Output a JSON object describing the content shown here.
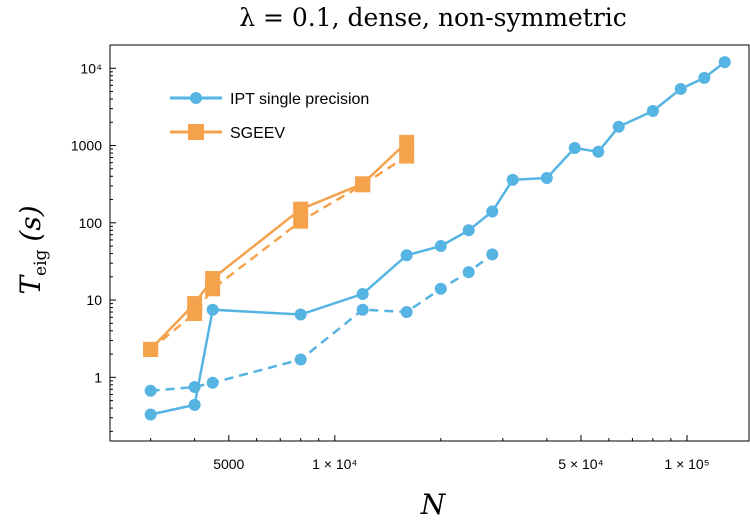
{
  "chart_data": {
    "type": "line",
    "title": "λ = 0.1, dense, non-symmetric",
    "xlabel": "N",
    "ylabel_main": "T",
    "ylabel_sub": "eig",
    "ylabel_unit": "(s)",
    "x_scale": "log",
    "y_scale": "log",
    "xlim": [
      2300,
      150000
    ],
    "ylim": [
      0.15,
      20000
    ],
    "x_ticks": [
      {
        "value": 5000,
        "label": "5000"
      },
      {
        "value": 10000,
        "label": "1 × 10⁴"
      },
      {
        "value": 50000,
        "label": "5 × 10⁴"
      },
      {
        "value": 100000,
        "label": "1 × 10⁵"
      }
    ],
    "y_ticks": [
      {
        "value": 1,
        "label": "1"
      },
      {
        "value": 10,
        "label": "10"
      },
      {
        "value": 100,
        "label": "100"
      },
      {
        "value": 1000,
        "label": "1000"
      },
      {
        "value": 10000,
        "label": "10⁴"
      }
    ],
    "legend_position": "top-left",
    "series": [
      {
        "name": "IPT single precision",
        "color": "#56B4E3",
        "marker": "circle",
        "dash": "solid",
        "x": [
          3000,
          4000,
          4500,
          8000,
          12000,
          16000,
          20000,
          24000,
          28000,
          32000,
          40000,
          48000,
          56000,
          64000,
          80000,
          96000,
          112000,
          128000
        ],
        "y": [
          0.33,
          0.44,
          7.5,
          6.5,
          12,
          38,
          50,
          80,
          140,
          360,
          380,
          930,
          830,
          1750,
          2800,
          5400,
          7500,
          12000
        ]
      },
      {
        "name": "",
        "color": "#56B4E3",
        "marker": "circle",
        "dash": "dashed",
        "x": [
          3000,
          4000,
          4500,
          8000,
          12000,
          16000,
          20000,
          24000,
          28000
        ],
        "y": [
          0.67,
          0.75,
          0.85,
          1.7,
          7.5,
          7.0,
          14,
          23,
          39
        ]
      },
      {
        "name": "SGEEV",
        "color": "#F5A24C",
        "marker": "square",
        "dash": "solid",
        "x": [
          3000,
          4000,
          4500,
          8000,
          12000,
          16000
        ],
        "y": [
          2.3,
          9,
          19,
          150,
          320,
          1100
        ]
      },
      {
        "name": "",
        "color": "#F5A24C",
        "marker": "square",
        "dash": "dashed",
        "x": [
          3000,
          4000,
          4500,
          8000,
          12000,
          16000
        ],
        "y": [
          2.3,
          6.7,
          14,
          105,
          310,
          730
        ]
      }
    ]
  }
}
